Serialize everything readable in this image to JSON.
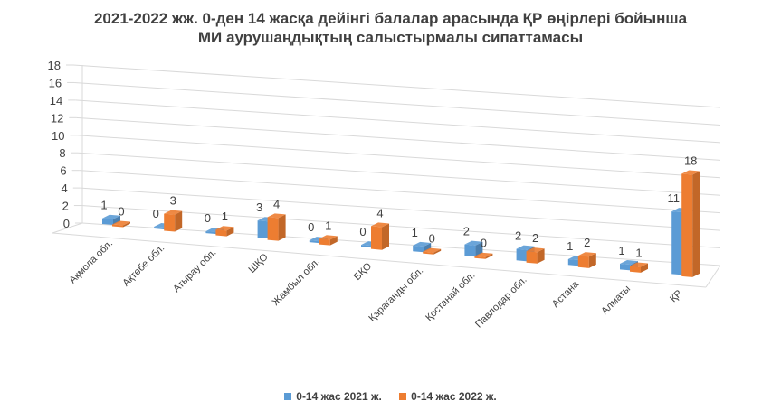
{
  "chart_data": {
    "type": "bar",
    "title_line1": "2021-2022 жж. 0-ден 14 жасқа дейінгі балалар арасында ҚР өңірлері бойынша",
    "title_line2": "МИ аурушаңдықтың салыстырмалы сипаттамасы",
    "categories": [
      "Ақмола обл.",
      "Ақтөбе обл.",
      "Атырау обл.",
      "ШҚО",
      "Жамбыл обл.",
      "БҚО",
      "Қарағанды обл.",
      "Қостанай обл.",
      "Павлодар обл.",
      "Астана",
      "Алматы",
      "ҚР"
    ],
    "series": [
      {
        "name": "0-14 жас 2021 ж.",
        "color": "#5b9bd5",
        "values": [
          1,
          0,
          0,
          3,
          0,
          0,
          1,
          2,
          2,
          1,
          1,
          11
        ]
      },
      {
        "name": "0-14 жас 2022 ж.",
        "color": "#ed7d31",
        "values": [
          0,
          3,
          1,
          4,
          1,
          4,
          0,
          0,
          2,
          2,
          1,
          18
        ]
      }
    ],
    "yticks": [
      0,
      2,
      4,
      6,
      8,
      10,
      12,
      14,
      16,
      18
    ],
    "ylim": [
      0,
      18
    ],
    "grid": true,
    "legend_position": "bottom"
  }
}
